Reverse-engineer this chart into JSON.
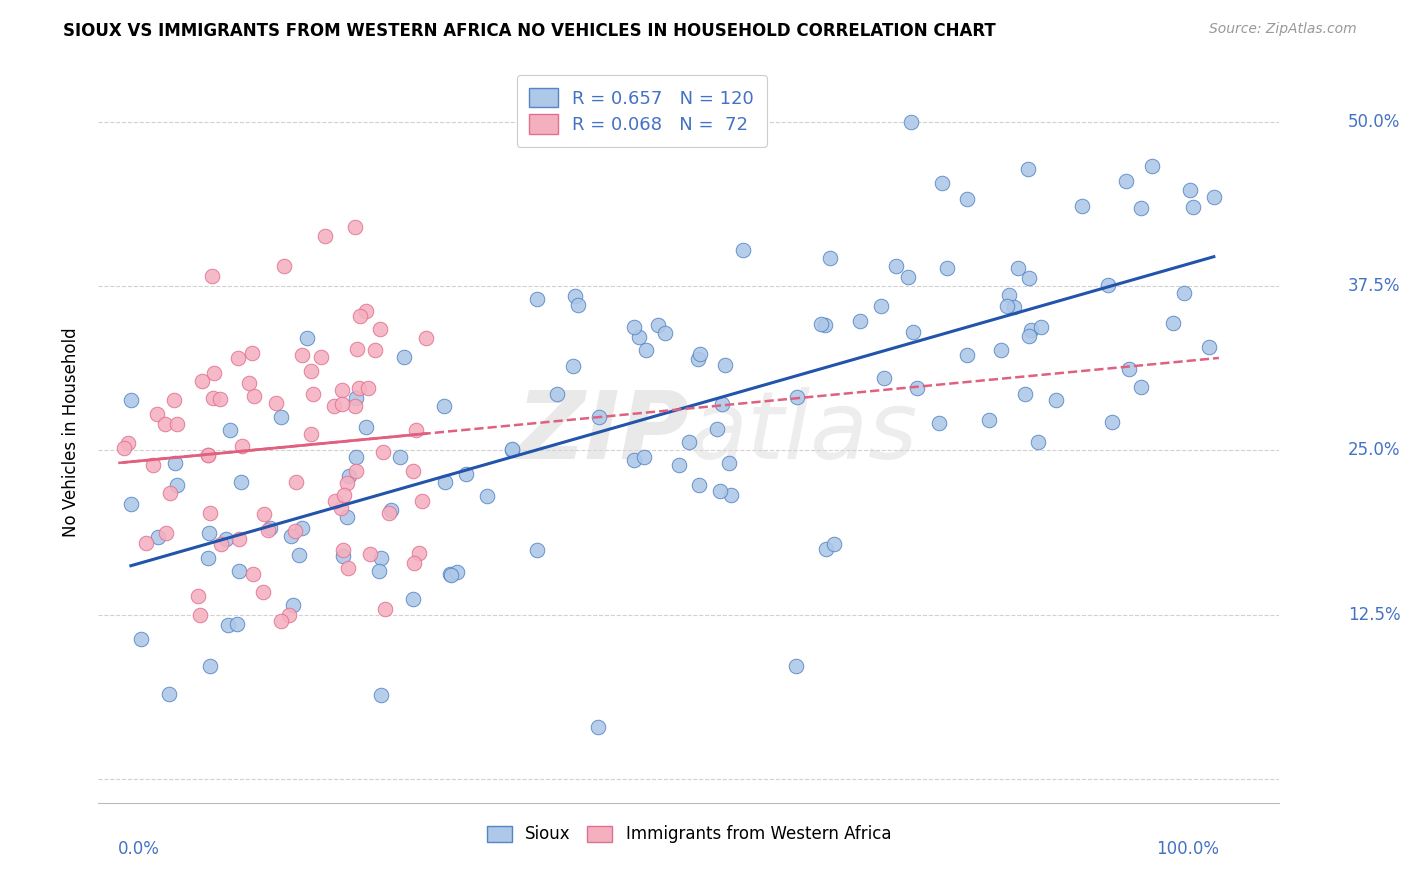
{
  "title": "SIOUX VS IMMIGRANTS FROM WESTERN AFRICA NO VEHICLES IN HOUSEHOLD CORRELATION CHART",
  "source": "Source: ZipAtlas.com",
  "ylabel": "No Vehicles in Household",
  "watermark_zip": "ZIP",
  "watermark_atlas": "atlas",
  "sioux_R": 0.657,
  "sioux_N": 120,
  "wa_R": 0.068,
  "wa_N": 72,
  "sioux_color": "#adc8e8",
  "sioux_edge_color": "#5585c5",
  "sioux_line_color": "#2255aa",
  "wa_color": "#f5b0c0",
  "wa_edge_color": "#e07090",
  "wa_line_color": "#e06080",
  "label_color": "#4472c4",
  "grid_color": "#cccccc",
  "ytick_vals": [
    0.0,
    0.125,
    0.25,
    0.375,
    0.5
  ],
  "ytick_labels": [
    "",
    "12.5%",
    "25.0%",
    "37.5%",
    "50.0%"
  ],
  "bottom_label1": "Sioux",
  "bottom_label2": "Immigrants from Western Africa",
  "xmin": 0.0,
  "xmax": 1.0,
  "ymin": 0.0,
  "ymax": 0.5
}
